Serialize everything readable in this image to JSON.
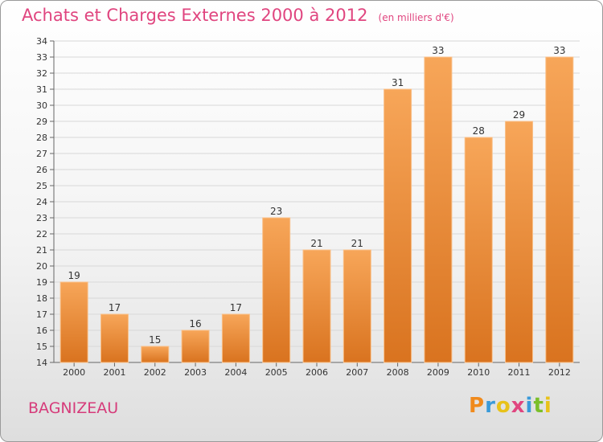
{
  "chart_data": {
    "type": "bar",
    "title": "Achats et Charges Externes 2000 à 2012",
    "subtitle": "(en milliers d'€)",
    "categories": [
      "2000",
      "2001",
      "2002",
      "2003",
      "2004",
      "2005",
      "2006",
      "2007",
      "2008",
      "2009",
      "2010",
      "2011",
      "2012"
    ],
    "values": [
      19,
      17,
      15,
      16,
      17,
      23,
      21,
      21,
      31,
      33,
      28,
      29,
      33
    ],
    "ylim": [
      14,
      34
    ],
    "yticks": [
      14,
      15,
      16,
      17,
      18,
      19,
      20,
      21,
      22,
      23,
      24,
      25,
      26,
      27,
      28,
      29,
      30,
      31,
      32,
      33,
      34
    ],
    "grid": true,
    "xlabel": "",
    "ylabel": "",
    "colors": {
      "bar_top": "#f7a659",
      "bar_bottom": "#d9731f",
      "bar_edge": "#f9c089",
      "grid": "#d8d8d8"
    }
  },
  "commune": "BAGNIZEAU",
  "brand": {
    "letters": [
      "P",
      "r",
      "o",
      "x",
      "i",
      "t",
      "i"
    ],
    "colors": [
      "#f08a1c",
      "#3a9ad9",
      "#e8c21a",
      "#e0457f",
      "#3a9ad9",
      "#7bbf2a",
      "#e8c21a"
    ]
  }
}
